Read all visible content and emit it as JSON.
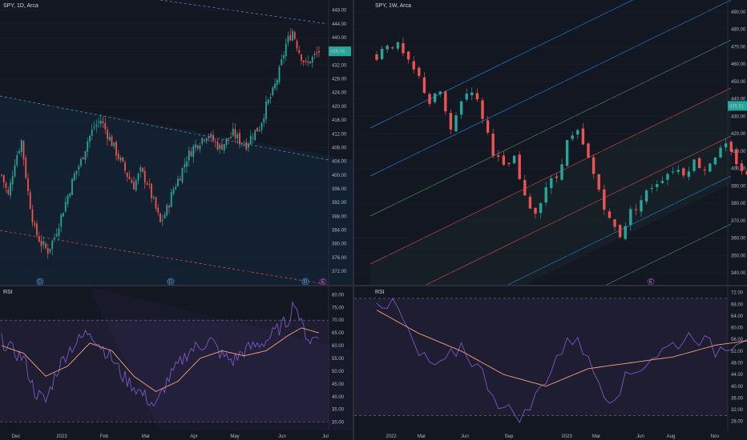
{
  "left": {
    "title": "SPY, 1D, Arca",
    "price_axis": [
      "448.00",
      "444.00",
      "440.00",
      "436.00",
      "432.00",
      "428.00",
      "424.00",
      "420.00",
      "416.00",
      "412.00",
      "408.00",
      "404.00",
      "400.00",
      "396.00",
      "392.00",
      "388.00",
      "384.00",
      "380.00",
      "376.00",
      "372.00"
    ],
    "price_range": [
      369,
      450
    ],
    "last_price_tag": "436.06",
    "rsi_label": "RSI",
    "rsi_axis": [
      "80.00",
      "75.00",
      "70.00",
      "65.00",
      "60.00",
      "55.00",
      "50.00",
      "45.00",
      "40.00",
      "35.00",
      "30.00"
    ],
    "time_axis": [
      "Dec",
      "2023",
      "Feb",
      "Mar",
      "Apr",
      "May",
      "Jun",
      "Jul"
    ],
    "event_markers": [
      "D",
      "D",
      "D",
      "E"
    ]
  },
  "right": {
    "title": "SPY, 1W, Arca",
    "price_axis": [
      "490.00",
      "480.00",
      "470.00",
      "460.00",
      "450.00",
      "440.00",
      "430.00",
      "420.00",
      "410.00",
      "400.00",
      "390.00",
      "380.00",
      "370.00",
      "360.00",
      "350.00",
      "340.00"
    ],
    "price_range": [
      335,
      495
    ],
    "last_price_tag": "435.61",
    "rsi_label": "RSI",
    "rsi_axis": [
      "72.00",
      "68.00",
      "64.00",
      "60.00",
      "56.00",
      "52.00",
      "48.00",
      "44.00",
      "40.00",
      "36.00",
      "32.00",
      "28.00"
    ],
    "time_axis": [
      "2022",
      "Mar",
      "Jun",
      "Sep",
      "2023",
      "Mar",
      "Jun",
      "Aug",
      "Nov"
    ],
    "event_markers": [
      "E"
    ]
  },
  "colors": {
    "background": "#131722",
    "up": "#26a69a",
    "down": "#ef5350",
    "rsi_line": "#7e57c2",
    "rsi_ma": "#f6a27a",
    "channel": "#2196f3",
    "grid": "#1e222d"
  },
  "chart_data": [
    {
      "type": "candlestick",
      "title": "SPY, 1D, Arca",
      "x": [
        "Dec",
        "2023",
        "Feb",
        "Mar",
        "Apr",
        "May",
        "Jun",
        "Jul"
      ],
      "ylim": [
        369,
        450
      ],
      "close_path": [
        [
          0,
          400
        ],
        [
          3,
          394
        ],
        [
          6,
          404
        ],
        [
          9,
          410
        ],
        [
          12,
          395
        ],
        [
          15,
          384
        ],
        [
          18,
          380
        ],
        [
          21,
          378
        ],
        [
          24,
          382
        ],
        [
          27,
          388
        ],
        [
          30,
          394
        ],
        [
          33,
          400
        ],
        [
          36,
          404
        ],
        [
          39,
          410
        ],
        [
          42,
          414
        ],
        [
          45,
          416
        ],
        [
          48,
          412
        ],
        [
          51,
          408
        ],
        [
          54,
          404
        ],
        [
          57,
          400
        ],
        [
          60,
          397
        ],
        [
          63,
          401
        ],
        [
          66,
          398
        ],
        [
          69,
          392
        ],
        [
          72,
          386
        ],
        [
          75,
          390
        ],
        [
          78,
          396
        ],
        [
          81,
          400
        ],
        [
          84,
          405
        ],
        [
          87,
          408
        ],
        [
          90,
          410
        ],
        [
          93,
          412
        ],
        [
          96,
          410
        ],
        [
          99,
          408
        ],
        [
          102,
          410
        ],
        [
          105,
          412
        ],
        [
          108,
          410
        ],
        [
          111,
          409
        ],
        [
          114,
          412
        ],
        [
          117,
          414
        ],
        [
          120,
          420
        ],
        [
          123,
          424
        ],
        [
          126,
          430
        ],
        [
          129,
          438
        ],
        [
          132,
          442
        ],
        [
          135,
          436
        ],
        [
          138,
          432
        ],
        [
          141,
          434
        ],
        [
          144,
          436
        ]
      ],
      "rsi": {
        "ylim": [
          28,
          82
        ],
        "value_path": [
          [
            0,
            62
          ],
          [
            5,
            58
          ],
          [
            10,
            55
          ],
          [
            15,
            42
          ],
          [
            20,
            38
          ],
          [
            25,
            50
          ],
          [
            30,
            58
          ],
          [
            35,
            62
          ],
          [
            40,
            66
          ],
          [
            45,
            60
          ],
          [
            50,
            55
          ],
          [
            55,
            48
          ],
          [
            60,
            44
          ],
          [
            65,
            40
          ],
          [
            70,
            36
          ],
          [
            75,
            46
          ],
          [
            80,
            52
          ],
          [
            85,
            58
          ],
          [
            90,
            60
          ],
          [
            95,
            62
          ],
          [
            100,
            56
          ],
          [
            105,
            54
          ],
          [
            110,
            58
          ],
          [
            115,
            60
          ],
          [
            120,
            62
          ],
          [
            125,
            66
          ],
          [
            130,
            70
          ],
          [
            133,
            78
          ],
          [
            136,
            68
          ],
          [
            140,
            62
          ],
          [
            144,
            64
          ]
        ],
        "ma_path": [
          [
            0,
            60
          ],
          [
            10,
            57
          ],
          [
            20,
            48
          ],
          [
            30,
            52
          ],
          [
            40,
            61
          ],
          [
            50,
            58
          ],
          [
            60,
            48
          ],
          [
            70,
            42
          ],
          [
            80,
            46
          ],
          [
            90,
            55
          ],
          [
            100,
            58
          ],
          [
            110,
            56
          ],
          [
            120,
            58
          ],
          [
            130,
            64
          ],
          [
            136,
            67
          ],
          [
            144,
            65
          ]
        ]
      }
    },
    {
      "type": "candlestick",
      "title": "SPY, 1W, Arca",
      "x": [
        "2022",
        "Mar",
        "Jun",
        "Sep",
        "2023",
        "Mar",
        "Jun",
        "Aug",
        "Nov"
      ],
      "ylim": [
        335,
        495
      ],
      "close_path": [
        [
          0,
          465
        ],
        [
          2,
          472
        ],
        [
          4,
          470
        ],
        [
          6,
          460
        ],
        [
          8,
          452
        ],
        [
          10,
          438
        ],
        [
          12,
          444
        ],
        [
          14,
          420
        ],
        [
          16,
          440
        ],
        [
          18,
          446
        ],
        [
          20,
          430
        ],
        [
          22,
          410
        ],
        [
          24,
          400
        ],
        [
          26,
          405
        ],
        [
          28,
          382
        ],
        [
          30,
          375
        ],
        [
          32,
          390
        ],
        [
          34,
          395
        ],
        [
          36,
          415
        ],
        [
          38,
          420
        ],
        [
          40,
          405
        ],
        [
          42,
          388
        ],
        [
          44,
          370
        ],
        [
          46,
          362
        ],
        [
          48,
          375
        ],
        [
          50,
          382
        ],
        [
          52,
          390
        ],
        [
          54,
          395
        ],
        [
          56,
          400
        ],
        [
          58,
          398
        ],
        [
          60,
          404
        ],
        [
          62,
          400
        ],
        [
          64,
          408
        ],
        [
          66,
          412
        ],
        [
          68,
          404
        ],
        [
          70,
          395
        ],
        [
          72,
          402
        ],
        [
          74,
          410
        ],
        [
          76,
          412
        ],
        [
          78,
          415
        ],
        [
          80,
          420
        ],
        [
          82,
          430
        ],
        [
          84,
          436
        ]
      ],
      "rsi": {
        "ylim": [
          26,
          73
        ],
        "value_path": [
          [
            0,
            70
          ],
          [
            4,
            66
          ],
          [
            8,
            50
          ],
          [
            12,
            46
          ],
          [
            16,
            54
          ],
          [
            20,
            44
          ],
          [
            24,
            32
          ],
          [
            28,
            30
          ],
          [
            30,
            36
          ],
          [
            34,
            50
          ],
          [
            38,
            58
          ],
          [
            40,
            48
          ],
          [
            44,
            36
          ],
          [
            48,
            44
          ],
          [
            52,
            50
          ],
          [
            56,
            54
          ],
          [
            60,
            58
          ],
          [
            64,
            52
          ],
          [
            68,
            56
          ],
          [
            72,
            60
          ],
          [
            76,
            62
          ],
          [
            80,
            66
          ],
          [
            82,
            68
          ],
          [
            84,
            66
          ]
        ],
        "ma_path": [
          [
            0,
            66
          ],
          [
            8,
            58
          ],
          [
            16,
            52
          ],
          [
            24,
            44
          ],
          [
            32,
            40
          ],
          [
            40,
            46
          ],
          [
            48,
            48
          ],
          [
            56,
            50
          ],
          [
            64,
            54
          ],
          [
            72,
            56
          ],
          [
            80,
            60
          ],
          [
            84,
            62
          ]
        ]
      }
    }
  ]
}
